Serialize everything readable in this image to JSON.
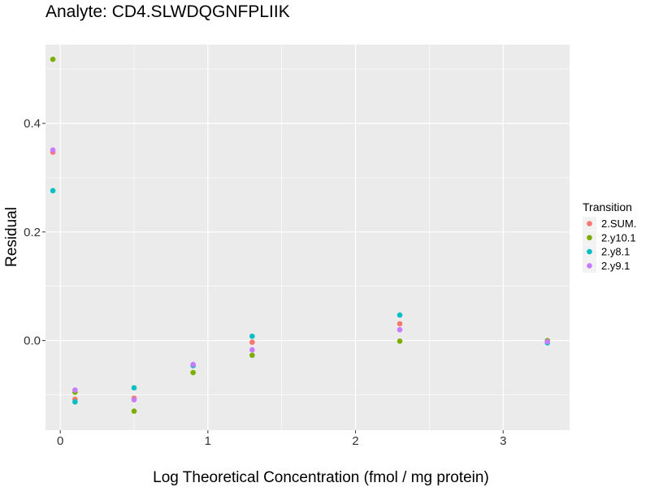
{
  "chart_data": {
    "type": "scatter",
    "title": "Analyte: CD4.SLWDQGNFPLIIK",
    "xlabel": "Log Theoretical Concentration (fmol / mg protein)",
    "ylabel": "Residual",
    "xlim": [
      -0.1,
      3.45
    ],
    "ylim": [
      -0.165,
      0.545
    ],
    "x_major_ticks": [
      0,
      1,
      2,
      3
    ],
    "x_minor_ticks": [
      0.5,
      1.5,
      2.5
    ],
    "y_major_ticks": [
      0.0,
      0.2,
      0.4
    ],
    "y_minor_ticks": [
      -0.1,
      0.1,
      0.3,
      0.5
    ],
    "x_tick_labels": [
      "0",
      "1",
      "2",
      "3"
    ],
    "y_tick_labels": [
      "0.0",
      "0.2",
      "0.4"
    ],
    "grid": true,
    "legend_title": "Transition",
    "legend_position": "right",
    "series": [
      {
        "name": "2.SUM.",
        "color": "#F8766D",
        "x": [
          -0.05,
          0.1,
          0.5,
          0.9,
          1.3,
          2.3,
          3.3
        ],
        "y": [
          0.347,
          -0.108,
          -0.106,
          -0.046,
          -0.003,
          0.031,
          -0.002
        ]
      },
      {
        "name": "2.y10.1",
        "color": "#7CAE00",
        "x": [
          -0.05,
          0.1,
          0.5,
          0.9,
          1.3,
          2.3,
          3.3
        ],
        "y": [
          0.518,
          -0.095,
          -0.13,
          -0.059,
          -0.027,
          -0.001,
          0.0
        ]
      },
      {
        "name": "2.y8.1",
        "color": "#00BFC4",
        "x": [
          -0.05,
          0.1,
          0.5,
          0.9,
          1.3,
          2.3,
          3.3
        ],
        "y": [
          0.276,
          -0.113,
          -0.087,
          -0.046,
          0.008,
          0.047,
          -0.004
        ]
      },
      {
        "name": "2.y9.1",
        "color": "#C77CFF",
        "x": [
          -0.05,
          0.1,
          0.5,
          0.9,
          1.3,
          2.3,
          3.3
        ],
        "y": [
          0.351,
          -0.091,
          -0.109,
          -0.044,
          -0.017,
          0.02,
          -0.002
        ]
      }
    ]
  }
}
